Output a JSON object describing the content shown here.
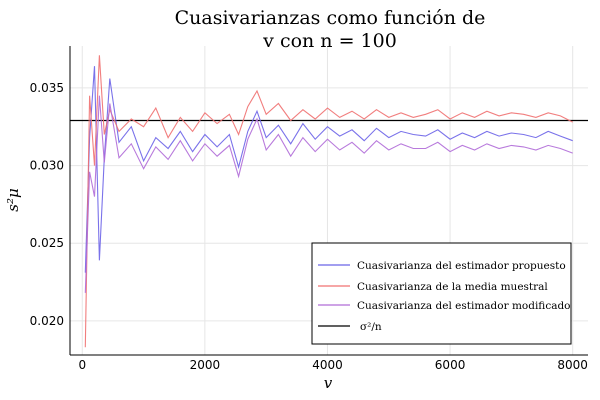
{
  "chart_data": {
    "type": "line",
    "title_lines": [
      "Cuasivarianzas como función de",
      "v con n = 100"
    ],
    "xlabel": "v",
    "ylabel": "s²μ",
    "xlim": [
      -200,
      8250
    ],
    "ylim": [
      0.0178,
      0.0377
    ],
    "xticks": [
      0,
      2000,
      4000,
      6000,
      8000
    ],
    "xtick_labels": [
      "0",
      "2000",
      "4000",
      "6000",
      "8000"
    ],
    "yticks": [
      0.02,
      0.025,
      0.03,
      0.035
    ],
    "ytick_labels": [
      "0.020",
      "0.025",
      "0.030",
      "0.035"
    ],
    "grid": true,
    "legend_position": "bottom-right",
    "reference_line": {
      "name": "σ²/n",
      "value": 0.0329,
      "color": "#000000"
    },
    "series": [
      {
        "name": "Cuasivarianza del estimador propuesto",
        "color": "#6b63e8",
        "x": [
          50,
          120,
          200,
          280,
          360,
          450,
          600,
          800,
          1000,
          1200,
          1400,
          1600,
          1800,
          2000,
          2200,
          2400,
          2550,
          2700,
          2850,
          3000,
          3200,
          3400,
          3600,
          3800,
          4000,
          4200,
          4400,
          4600,
          4800,
          5000,
          5200,
          5400,
          5600,
          5800,
          6000,
          6200,
          6400,
          6600,
          6800,
          7000,
          7200,
          7400,
          7600,
          7800,
          8000
        ],
        "y": [
          0.0231,
          0.0318,
          0.0364,
          0.0239,
          0.0305,
          0.0356,
          0.0315,
          0.0325,
          0.0303,
          0.0318,
          0.0311,
          0.0322,
          0.0309,
          0.032,
          0.0312,
          0.032,
          0.0299,
          0.0322,
          0.0335,
          0.0318,
          0.0326,
          0.0314,
          0.0327,
          0.0317,
          0.0325,
          0.0319,
          0.0323,
          0.0316,
          0.0324,
          0.0318,
          0.0322,
          0.032,
          0.0319,
          0.0323,
          0.0317,
          0.0321,
          0.0318,
          0.0322,
          0.0319,
          0.0321,
          0.032,
          0.0318,
          0.0322,
          0.0319,
          0.0316
        ]
      },
      {
        "name": "Cuasivarianza de la media muestral",
        "color": "#f07070",
        "x": [
          50,
          120,
          200,
          280,
          360,
          450,
          600,
          800,
          1000,
          1200,
          1400,
          1600,
          1800,
          2000,
          2200,
          2400,
          2550,
          2700,
          2850,
          3000,
          3200,
          3400,
          3600,
          3800,
          4000,
          4200,
          4400,
          4600,
          4800,
          5000,
          5200,
          5400,
          5600,
          5800,
          6000,
          6200,
          6400,
          6600,
          6800,
          7000,
          7200,
          7400,
          7600,
          7800,
          8000
        ],
        "y": [
          0.0183,
          0.0345,
          0.03,
          0.0371,
          0.032,
          0.0336,
          0.0322,
          0.033,
          0.0325,
          0.0337,
          0.0318,
          0.0331,
          0.0322,
          0.0334,
          0.0327,
          0.0333,
          0.032,
          0.0338,
          0.0348,
          0.0333,
          0.034,
          0.0329,
          0.0336,
          0.033,
          0.0337,
          0.0331,
          0.0335,
          0.033,
          0.0336,
          0.0331,
          0.0334,
          0.0331,
          0.0333,
          0.0336,
          0.033,
          0.0334,
          0.0331,
          0.0335,
          0.0332,
          0.0334,
          0.0333,
          0.0331,
          0.0334,
          0.0332,
          0.0328
        ]
      },
      {
        "name": "Cuasivarianza del estimador modificado",
        "color": "#b06cd8",
        "x": [
          50,
          120,
          200,
          280,
          360,
          450,
          600,
          800,
          1000,
          1200,
          1400,
          1600,
          1800,
          2000,
          2200,
          2400,
          2550,
          2700,
          2850,
          3000,
          3200,
          3400,
          3600,
          3800,
          4000,
          4200,
          4400,
          4600,
          4800,
          5000,
          5200,
          5400,
          5600,
          5800,
          6000,
          6200,
          6400,
          6600,
          6800,
          7000,
          7200,
          7400,
          7600,
          7800,
          8000
        ],
        "y": [
          0.0218,
          0.0296,
          0.028,
          0.0345,
          0.0302,
          0.034,
          0.0305,
          0.0314,
          0.0298,
          0.0312,
          0.0304,
          0.0316,
          0.0303,
          0.0314,
          0.0306,
          0.0313,
          0.0293,
          0.0317,
          0.033,
          0.031,
          0.032,
          0.0306,
          0.0318,
          0.0309,
          0.0317,
          0.031,
          0.0315,
          0.0308,
          0.0316,
          0.031,
          0.0314,
          0.0311,
          0.0311,
          0.0315,
          0.0309,
          0.0313,
          0.031,
          0.0314,
          0.0311,
          0.0313,
          0.0312,
          0.031,
          0.0313,
          0.0311,
          0.0308
        ]
      }
    ]
  }
}
